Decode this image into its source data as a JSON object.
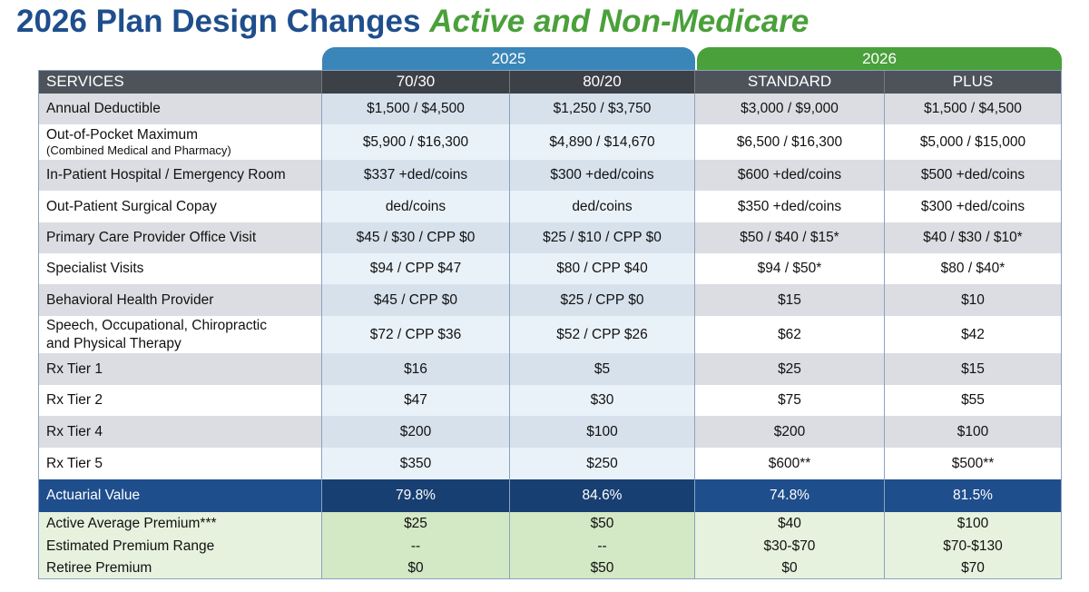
{
  "header": {
    "title": "2026 Plan Design Changes",
    "subtitle": "Active and Non-Medicare"
  },
  "table": {
    "groups": [
      "2025",
      "2026"
    ],
    "columns": [
      "SERVICES",
      "70/30",
      "80/20",
      "STANDARD",
      "PLUS"
    ],
    "rows": [
      {
        "label": "Annual Deductible",
        "values": [
          "$1,500 / $4,500",
          "$1,250 / $3,750",
          "$3,000 / $9,000",
          "$1,500 / $4,500"
        ]
      },
      {
        "label": "Out-of-Pocket Maximum",
        "note": "(Combined Medical and Pharmacy)",
        "values": [
          "$5,900 / $16,300",
          "$4,890 / $14,670",
          "$6,500 / $16,300",
          "$5,000 / $15,000"
        ]
      },
      {
        "label": "In-Patient Hospital / Emergency Room",
        "values": [
          "$337 +ded/coins",
          "$300 +ded/coins",
          "$600 +ded/coins",
          "$500 +ded/coins"
        ]
      },
      {
        "label": "Out-Patient Surgical Copay",
        "values": [
          "ded/coins",
          "ded/coins",
          "$350 +ded/coins",
          "$300 +ded/coins"
        ]
      },
      {
        "label": "Primary Care Provider Office Visit",
        "values": [
          "$45 / $30 / CPP $0",
          "$25 / $10 / CPP $0",
          "$50 / $40 / $15*",
          "$40 / $30 / $10*"
        ]
      },
      {
        "label": "Specialist Visits",
        "values": [
          "$94 / CPP $47",
          "$80 / CPP $40",
          "$94 / $50*",
          "$80 / $40*"
        ]
      },
      {
        "label": "Behavioral Health Provider",
        "values": [
          "$45 / CPP $0",
          "$25 / CPP $0",
          "$15",
          "$10"
        ]
      },
      {
        "label": "Speech, Occupational, Chiropractic",
        "note": "and Physical Therapy",
        "values": [
          "$72 / CPP $36",
          "$52 / CPP $26",
          "$62",
          "$42"
        ]
      },
      {
        "label": "Rx Tier 1",
        "values": [
          "$16",
          "$5",
          "$25",
          "$15"
        ]
      },
      {
        "label": "Rx Tier 2",
        "values": [
          "$47",
          "$30",
          "$75",
          "$55"
        ]
      },
      {
        "label": "Rx Tier 4",
        "values": [
          "$200",
          "$100",
          "$200",
          "$100"
        ]
      },
      {
        "label": "Rx Tier 5",
        "values": [
          "$350",
          "$250",
          "$600**",
          "$500**"
        ]
      }
    ],
    "summary_row": {
      "label": "Actuarial Value",
      "values": [
        "79.8%",
        "84.6%",
        "74.8%",
        "81.5%"
      ]
    },
    "premium_rows": [
      {
        "label": "Active Average Premium***",
        "values": [
          "$25",
          "$50",
          "$40",
          "$100"
        ]
      },
      {
        "label": "Estimated Premium Range",
        "values": [
          "--",
          "--",
          "$30-$70",
          "$70-$130"
        ]
      },
      {
        "label": "Retiree Premium",
        "values": [
          "$0",
          "$50",
          "$0",
          "$70"
        ]
      }
    ]
  }
}
